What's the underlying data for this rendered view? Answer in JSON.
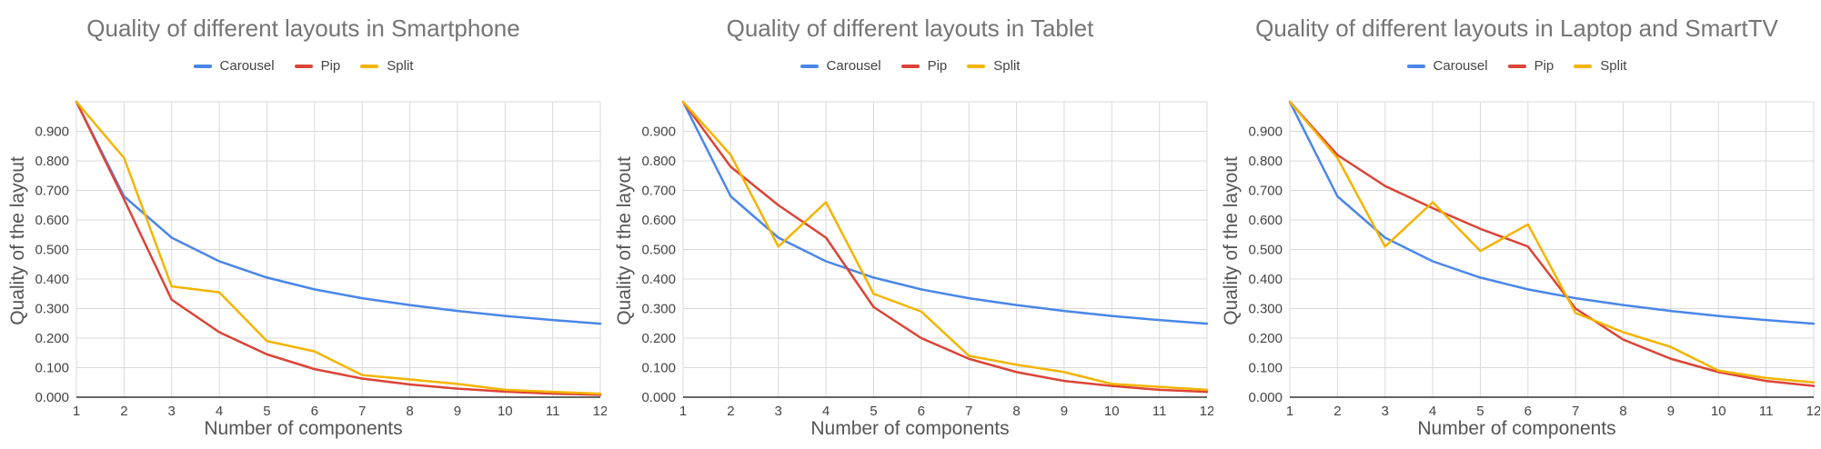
{
  "chart_data": [
    {
      "type": "line",
      "title": "Quality of different layouts in Smartphone",
      "xlabel": "Number of components",
      "ylabel": "Quality of the layout",
      "x": [
        1,
        2,
        3,
        4,
        5,
        6,
        7,
        8,
        9,
        10,
        11,
        12
      ],
      "xlim": [
        1,
        12
      ],
      "ylim": [
        0,
        1
      ],
      "yticks": [
        "0.000",
        "0.100",
        "0.200",
        "0.300",
        "0.400",
        "0.500",
        "0.600",
        "0.700",
        "0.800",
        "0.900"
      ],
      "legend_position": "top",
      "grid": true,
      "series": [
        {
          "name": "Carousel",
          "color": "#4a86e8",
          "values": [
            1.0,
            0.68,
            0.54,
            0.46,
            0.405,
            0.365,
            0.335,
            0.312,
            0.292,
            0.275,
            0.261,
            0.249
          ]
        },
        {
          "name": "Pip",
          "color": "#db4437",
          "values": [
            1.0,
            0.67,
            0.33,
            0.22,
            0.145,
            0.095,
            0.063,
            0.043,
            0.029,
            0.019,
            0.012,
            0.008
          ]
        },
        {
          "name": "Split",
          "color": "#f4b400",
          "values": [
            1.0,
            0.81,
            0.375,
            0.355,
            0.19,
            0.155,
            0.075,
            0.06,
            0.045,
            0.025,
            0.018,
            0.012
          ]
        }
      ]
    },
    {
      "type": "line",
      "title": "Quality of different layouts in Tablet",
      "xlabel": "Number of components",
      "ylabel": "Quality of the layout",
      "x": [
        1,
        2,
        3,
        4,
        5,
        6,
        7,
        8,
        9,
        10,
        11,
        12
      ],
      "xlim": [
        1,
        12
      ],
      "ylim": [
        0,
        1
      ],
      "yticks": [
        "0.000",
        "0.100",
        "0.200",
        "0.300",
        "0.400",
        "0.500",
        "0.600",
        "0.700",
        "0.800",
        "0.900"
      ],
      "legend_position": "top",
      "grid": true,
      "series": [
        {
          "name": "Carousel",
          "color": "#4a86e8",
          "values": [
            1.0,
            0.68,
            0.54,
            0.46,
            0.405,
            0.365,
            0.335,
            0.312,
            0.292,
            0.275,
            0.261,
            0.249
          ]
        },
        {
          "name": "Pip",
          "color": "#db4437",
          "values": [
            1.0,
            0.78,
            0.65,
            0.54,
            0.305,
            0.2,
            0.13,
            0.085,
            0.055,
            0.038,
            0.025,
            0.018
          ]
        },
        {
          "name": "Split",
          "color": "#f4b400",
          "values": [
            1.0,
            0.82,
            0.51,
            0.66,
            0.35,
            0.29,
            0.14,
            0.11,
            0.085,
            0.045,
            0.035,
            0.025
          ]
        }
      ]
    },
    {
      "type": "line",
      "title": "Quality of different layouts in Laptop and SmartTV",
      "xlabel": "Number of components",
      "ylabel": "Quality of the layout",
      "x": [
        1,
        2,
        3,
        4,
        5,
        6,
        7,
        8,
        9,
        10,
        11,
        12
      ],
      "xlim": [
        1,
        12
      ],
      "ylim": [
        0,
        1
      ],
      "yticks": [
        "0.000",
        "0.100",
        "0.200",
        "0.300",
        "0.400",
        "0.500",
        "0.600",
        "0.700",
        "0.800",
        "0.900"
      ],
      "legend_position": "top",
      "grid": true,
      "series": [
        {
          "name": "Carousel",
          "color": "#4a86e8",
          "values": [
            1.0,
            0.68,
            0.54,
            0.46,
            0.405,
            0.365,
            0.335,
            0.312,
            0.292,
            0.275,
            0.261,
            0.249
          ]
        },
        {
          "name": "Pip",
          "color": "#db4437",
          "values": [
            1.0,
            0.82,
            0.715,
            0.64,
            0.57,
            0.51,
            0.3,
            0.195,
            0.13,
            0.085,
            0.055,
            0.038
          ]
        },
        {
          "name": "Split",
          "color": "#f4b400",
          "values": [
            1.0,
            0.81,
            0.51,
            0.66,
            0.495,
            0.585,
            0.285,
            0.22,
            0.17,
            0.09,
            0.065,
            0.05
          ]
        }
      ]
    }
  ]
}
